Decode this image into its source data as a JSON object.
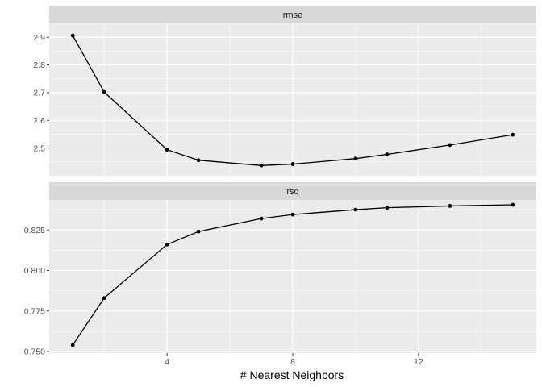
{
  "chart_data": {
    "type": "line",
    "xlabel": "# Nearest Neighbors",
    "x_ticks": [
      4,
      8,
      12
    ],
    "xlim": [
      0.25,
      15.75
    ],
    "panels": [
      {
        "strip": "rmse",
        "ylim": [
          2.4,
          2.95
        ],
        "y_ticks": [
          2.5,
          2.6,
          2.7,
          2.8,
          2.9
        ],
        "y_tick_labels": [
          "2.5",
          "2.6",
          "2.7",
          "2.8",
          "2.9"
        ],
        "x": [
          1,
          2,
          4,
          5,
          7,
          8,
          10,
          11,
          13,
          15
        ],
        "y": [
          2.906,
          2.702,
          2.494,
          2.456,
          2.437,
          2.442,
          2.462,
          2.477,
          2.511,
          2.548
        ]
      },
      {
        "strip": "rsq",
        "ylim": [
          0.749,
          0.8435
        ],
        "y_ticks": [
          0.75,
          0.775,
          0.8,
          0.825
        ],
        "y_tick_labels": [
          "0.750",
          "0.775",
          "0.800",
          "0.825"
        ],
        "x": [
          1,
          2,
          4,
          5,
          7,
          8,
          10,
          11,
          13,
          15
        ],
        "y": [
          0.754,
          0.783,
          0.816,
          0.824,
          0.832,
          0.8345,
          0.8375,
          0.8387,
          0.8398,
          0.8405
        ]
      }
    ]
  }
}
